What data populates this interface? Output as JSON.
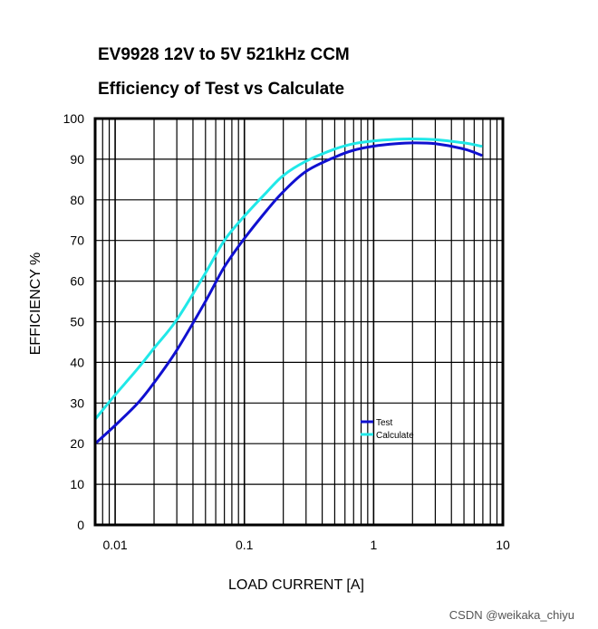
{
  "chart_data": {
    "type": "line",
    "title": "EV9928 12V to 5V 521kHz CCM",
    "subtitle": "Efficiency of Test vs Calculate",
    "xlabel": "LOAD CURRENT [A]",
    "ylabel": "EFFICIENCY %",
    "xscale": "log",
    "xlim": [
      0.007,
      10
    ],
    "ylim": [
      0,
      100
    ],
    "x_tick_labels": [
      {
        "value": 0.01,
        "label": "0.01"
      },
      {
        "value": 0.1,
        "label": "0.1"
      },
      {
        "value": 1,
        "label": "1"
      },
      {
        "value": 10,
        "label": "10"
      }
    ],
    "y_ticks": [
      0,
      10,
      20,
      30,
      40,
      50,
      60,
      70,
      80,
      90,
      100
    ],
    "grid": true,
    "legend_position": "center-right",
    "series": [
      {
        "name": "Test",
        "color": "#1010d0",
        "x": [
          0.007,
          0.01,
          0.015,
          0.02,
          0.03,
          0.05,
          0.07,
          0.1,
          0.15,
          0.2,
          0.3,
          0.5,
          0.7,
          1,
          1.5,
          2,
          3,
          5,
          6.8
        ],
        "y": [
          20,
          24.5,
          30,
          35,
          43,
          55,
          63.5,
          70.5,
          77.5,
          82,
          87,
          90.5,
          92.2,
          93.2,
          93.8,
          94,
          93.8,
          92.5,
          91
        ]
      },
      {
        "name": "Calculate",
        "color": "#20e8e8",
        "x": [
          0.007,
          0.01,
          0.015,
          0.02,
          0.03,
          0.05,
          0.07,
          0.1,
          0.15,
          0.2,
          0.3,
          0.5,
          0.7,
          1,
          1.5,
          2,
          3,
          5,
          6.8
        ],
        "y": [
          26,
          32,
          38.5,
          43.5,
          50.5,
          62,
          70,
          76,
          82,
          86,
          89.5,
          92.5,
          93.8,
          94.5,
          94.9,
          95,
          94.8,
          94,
          93.2
        ]
      }
    ]
  },
  "watermark": "CSDN @weikaka_chiyu"
}
